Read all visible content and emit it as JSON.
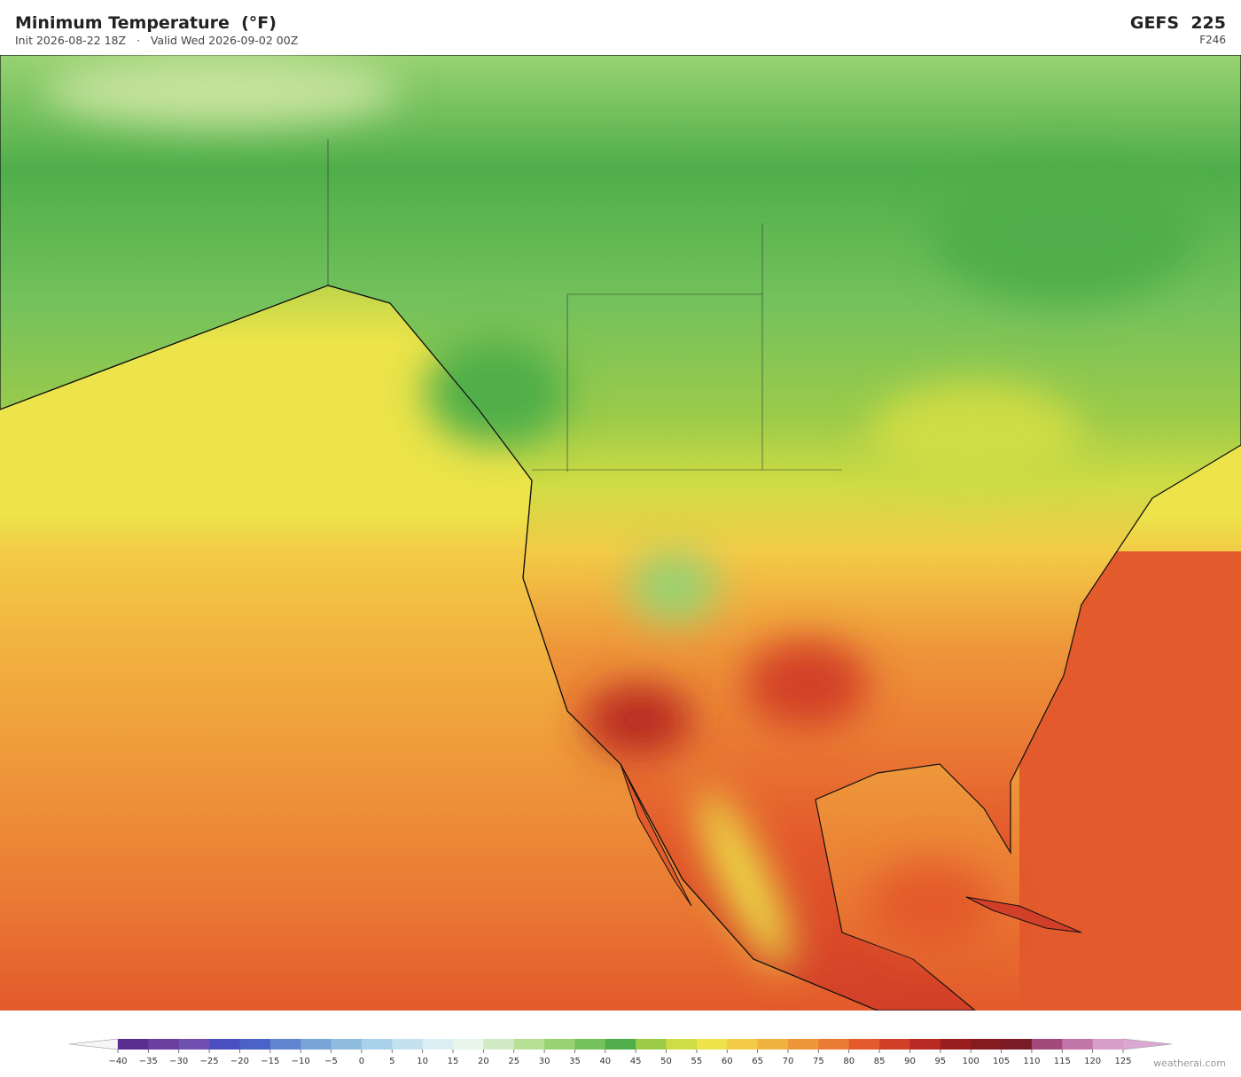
{
  "header": {
    "title": "Minimum Temperature  (°F)",
    "subtitle": "Init 2026-08-22 18Z   ·   Valid Wed 2026-09-02 00Z",
    "model": "GEFS  225",
    "forecast_hour": "F246"
  },
  "colorbar": {
    "ticks": [
      {
        "value": -40,
        "label": "−40"
      },
      {
        "value": -35,
        "label": "−35"
      },
      {
        "value": -30,
        "label": "−30"
      },
      {
        "value": -25,
        "label": "−25"
      },
      {
        "value": -20,
        "label": "−20"
      },
      {
        "value": -15,
        "label": "−15"
      },
      {
        "value": -10,
        "label": "−10"
      },
      {
        "value": -5,
        "label": "−5"
      },
      0,
      5,
      10,
      15,
      20,
      25,
      30,
      35,
      40,
      45,
      50,
      55,
      60,
      65,
      70,
      75,
      80,
      85,
      90,
      95,
      100,
      105,
      110,
      115,
      120,
      125
    ],
    "colors": [
      "#5a2d91",
      "#6b3fa0",
      "#7050b0",
      "#4a4fc0",
      "#4b62c8",
      "#5f86cf",
      "#78a4d8",
      "#90bce0",
      "#a9d1ea",
      "#c3e1ef",
      "#daeef3",
      "#e8f5e9",
      "#d2ebc6",
      "#b8e094",
      "#98d272",
      "#74c25c",
      "#4fae4a",
      "#9ccb4a",
      "#cfdc44",
      "#ece44a",
      "#f3cb47",
      "#f2b23f",
      "#ee963a",
      "#ea7a34",
      "#e35a2c",
      "#d23f28",
      "#b82a24",
      "#9a1e1f",
      "#851a1f",
      "#7a1b27",
      "#a34a7a",
      "#c275a8",
      "#d79dcb"
    ]
  },
  "watermark": "weatherai.com"
}
